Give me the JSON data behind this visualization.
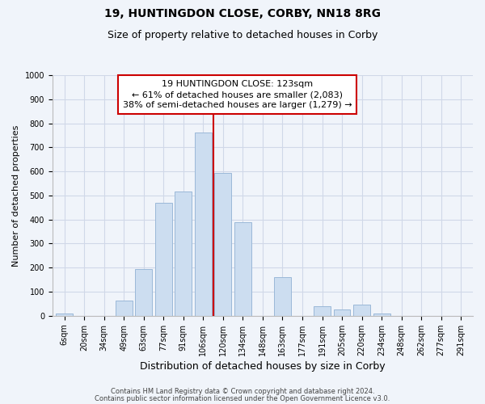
{
  "title": "19, HUNTINGDON CLOSE, CORBY, NN18 8RG",
  "subtitle": "Size of property relative to detached houses in Corby",
  "xlabel": "Distribution of detached houses by size in Corby",
  "ylabel": "Number of detached properties",
  "bin_labels": [
    "6sqm",
    "20sqm",
    "34sqm",
    "49sqm",
    "63sqm",
    "77sqm",
    "91sqm",
    "106sqm",
    "120sqm",
    "134sqm",
    "148sqm",
    "163sqm",
    "177sqm",
    "191sqm",
    "205sqm",
    "220sqm",
    "234sqm",
    "248sqm",
    "262sqm",
    "277sqm",
    "291sqm"
  ],
  "bar_heights": [
    10,
    0,
    0,
    62,
    195,
    470,
    515,
    760,
    595,
    390,
    0,
    160,
    0,
    40,
    25,
    45,
    8,
    0,
    0,
    0,
    0
  ],
  "bar_color": "#ccddf0",
  "bar_edge_color": "#9ab8d8",
  "vline_x_index": 8,
  "vline_color": "#cc0000",
  "ylim": [
    0,
    1000
  ],
  "yticks": [
    0,
    100,
    200,
    300,
    400,
    500,
    600,
    700,
    800,
    900,
    1000
  ],
  "annotation_title": "19 HUNTINGDON CLOSE: 123sqm",
  "annotation_line1": "← 61% of detached houses are smaller (2,083)",
  "annotation_line2": "38% of semi-detached houses are larger (1,279) →",
  "annotation_box_facecolor": "#ffffff",
  "annotation_box_edgecolor": "#cc0000",
  "footer_line1": "Contains HM Land Registry data © Crown copyright and database right 2024.",
  "footer_line2": "Contains public sector information licensed under the Open Government Licence v3.0.",
  "grid_color": "#d0d8e8",
  "background_color": "#f0f4fa",
  "title_fontsize": 10,
  "subtitle_fontsize": 9,
  "xlabel_fontsize": 9,
  "ylabel_fontsize": 8,
  "tick_fontsize": 7,
  "footer_fontsize": 6,
  "ann_fontsize": 8
}
